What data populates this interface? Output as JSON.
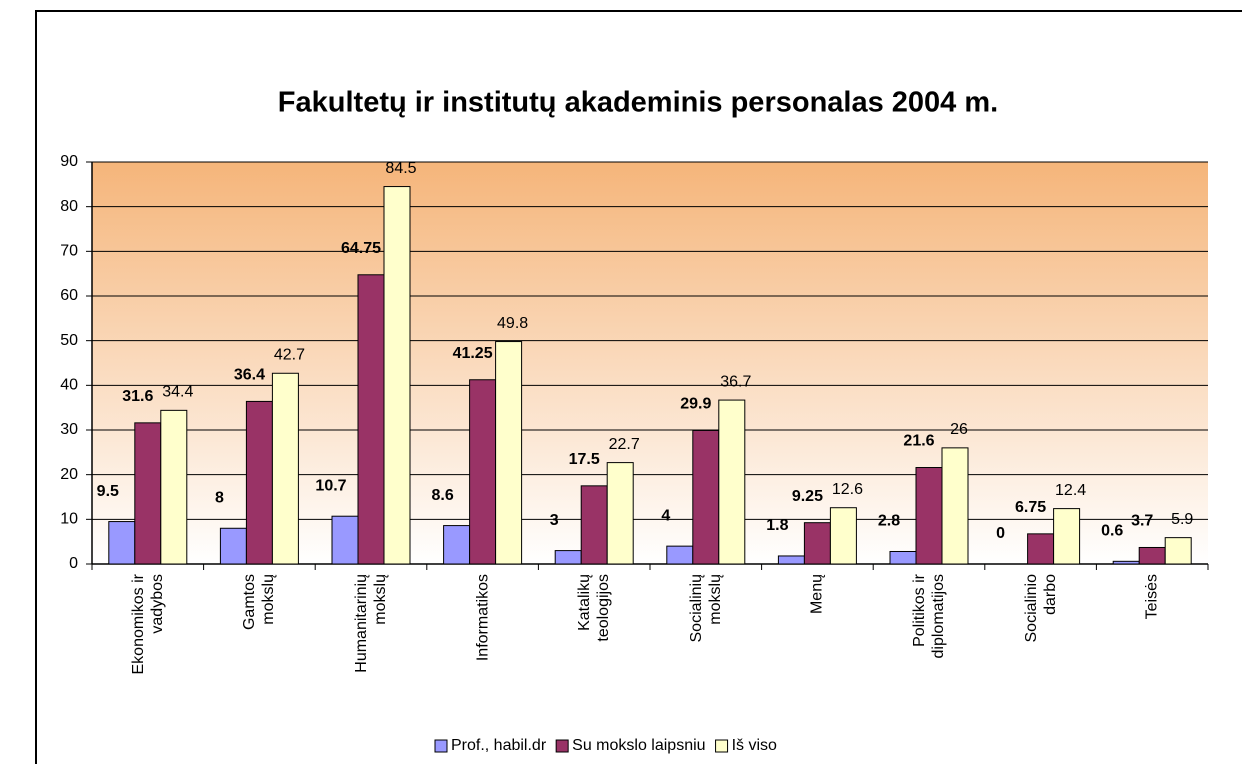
{
  "chart_data": {
    "type": "bar",
    "title": "Fakultetų ir institutų akademinis personalas 2004 m.",
    "categories": [
      "Ekonomikos ir\nvadybos",
      "Gamtos\nmokslų",
      "Humanitarinių\nmokslų",
      "Informatikos",
      "Katalikų\nteologijos",
      "Socialinių\nmokslų",
      "Menų",
      "Politikos ir\ndiplomatijos",
      "Socialinio\ndarbo",
      "Teisės"
    ],
    "series": [
      {
        "name": "Prof., habil.dr",
        "color": "#9999ff",
        "values": [
          9.5,
          8,
          10.7,
          8.6,
          3,
          4,
          1.8,
          2.8,
          0,
          0.6
        ]
      },
      {
        "name": "Su mokslo laipsniu",
        "color": "#993366",
        "values": [
          31.6,
          36.4,
          64.75,
          41.25,
          17.5,
          29.9,
          9.25,
          21.6,
          6.75,
          3.7
        ]
      },
      {
        "name": "Iš viso",
        "color": "#ffffcc",
        "values": [
          34.4,
          42.7,
          84.5,
          49.8,
          22.7,
          36.7,
          12.6,
          26,
          12.4,
          5.9
        ]
      }
    ],
    "ylim": [
      0,
      90
    ],
    "yticks": [
      0,
      10,
      20,
      30,
      40,
      50,
      60,
      70,
      80,
      90
    ],
    "grid": true,
    "legend": "bottom"
  }
}
